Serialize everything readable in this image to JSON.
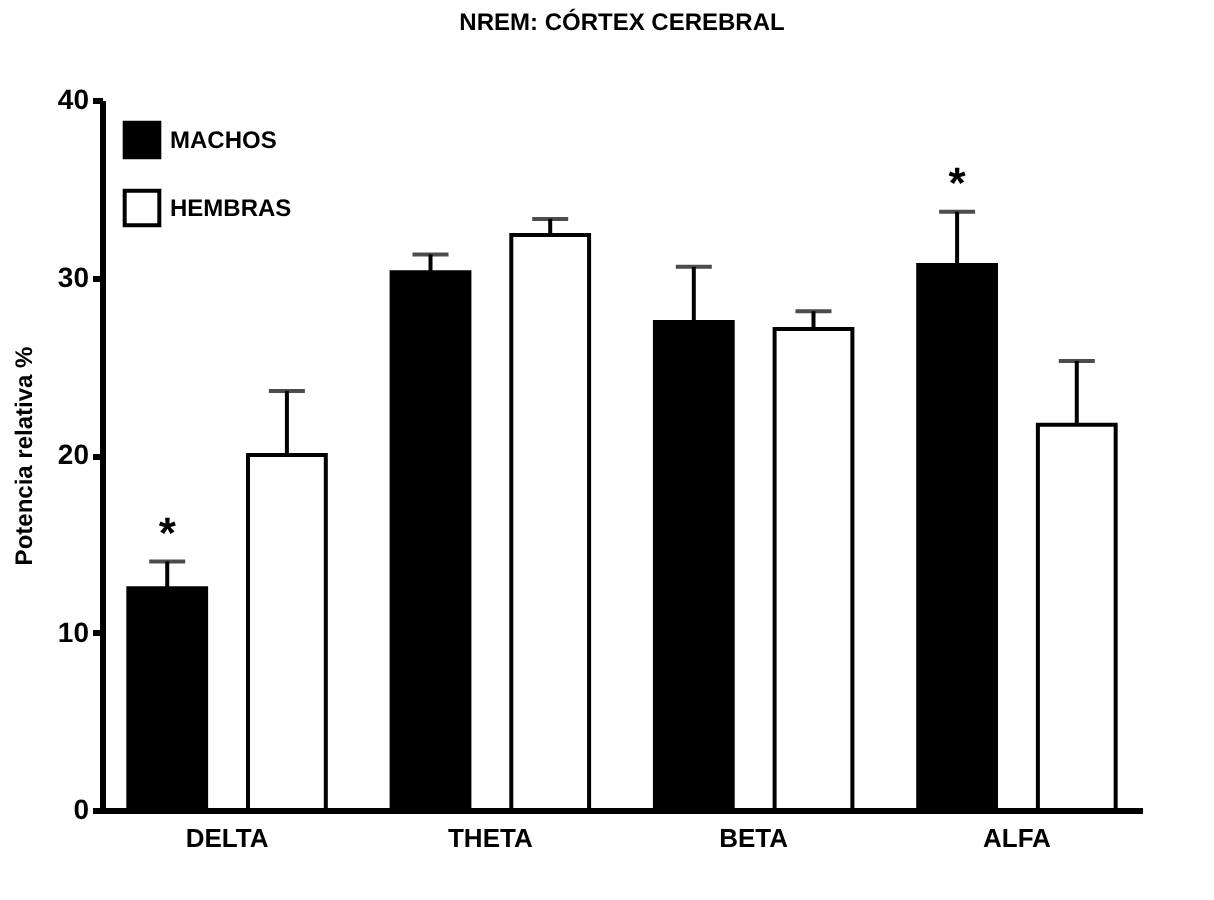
{
  "chart_data": {
    "type": "bar",
    "title": "NREM: CÓRTEX CEREBRAL",
    "ylabel": "Potencia relativa %",
    "categories": [
      "DELTA",
      "THETA",
      "BETA",
      "ALFA"
    ],
    "series": [
      {
        "name": "MACHOS",
        "color": "#000000",
        "values": [
          12.5,
          30.3,
          27.5,
          30.7
        ],
        "value_labels": [
          "*",
          null,
          null,
          "*"
        ],
        "errors": [
          [
            12.5,
            14.0
          ],
          [
            30.3,
            31.3
          ],
          [
            27.5,
            30.6
          ],
          [
            30.7,
            33.7
          ]
        ]
      },
      {
        "name": "HEMBRAS",
        "color": "#ffffff",
        "values": [
          20.0,
          32.4,
          27.1,
          21.7
        ],
        "errors": [
          [
            20.0,
            23.6
          ],
          [
            32.4,
            33.3
          ],
          [
            27.1,
            28.1
          ],
          [
            21.7,
            25.3
          ]
        ]
      }
    ],
    "ylim": [
      0,
      40
    ],
    "yticks": [
      0,
      10,
      20,
      30,
      40
    ],
    "grid": false,
    "legend": "top left"
  }
}
